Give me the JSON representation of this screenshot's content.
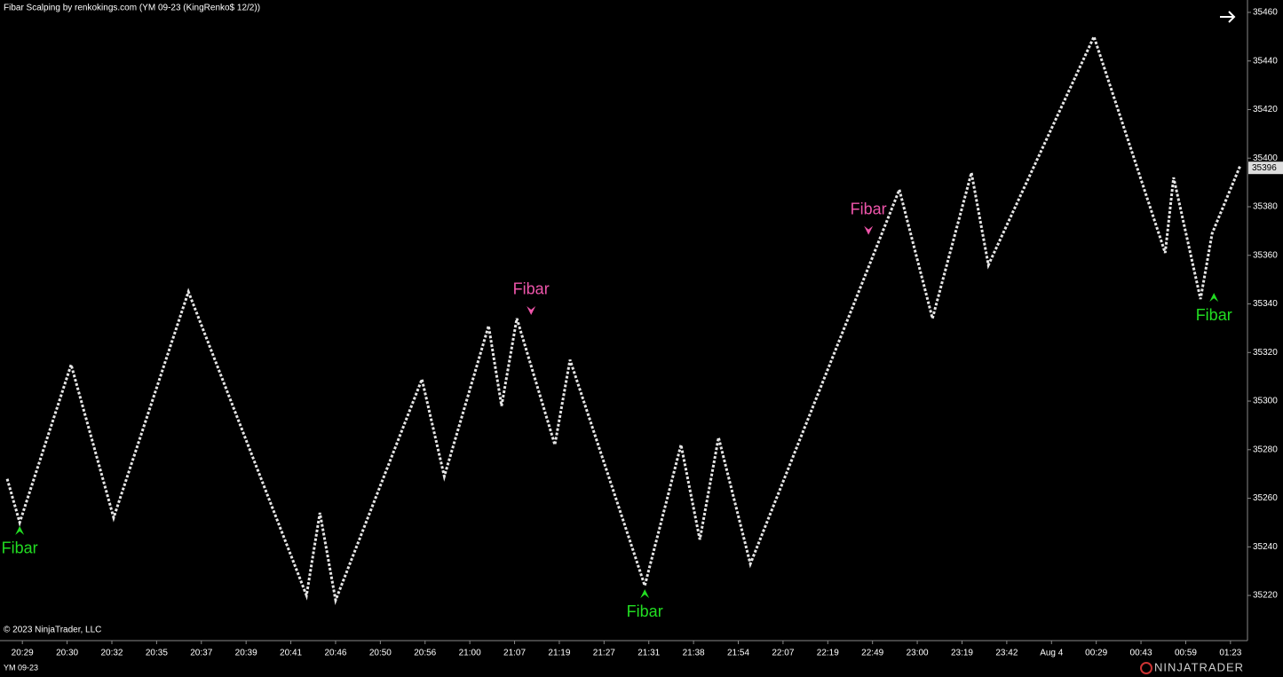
{
  "chart_data": {
    "type": "renko",
    "title": "Fibar Scalping by renkokings.com (YM 09-23 (KingRenko$ 12/2))",
    "copyright": "© 2023 NinjaTrader, LLC",
    "instrument": "YM 09-23",
    "brand": "NINJATRADER",
    "categories": [
      "20:29",
      "20:30",
      "20:32",
      "20:35",
      "20:37",
      "20:39",
      "20:41",
      "20:46",
      "20:50",
      "20:56",
      "21:00",
      "21:07",
      "21:19",
      "21:27",
      "21:31",
      "21:38",
      "21:54",
      "22:07",
      "22:19",
      "22:49",
      "23:00",
      "23:19",
      "23:42",
      "Aug 4",
      "00:29",
      "00:43",
      "00:59",
      "01:23"
    ],
    "x": [
      -0.34,
      -0.06,
      1.09,
      2.04,
      3.71,
      6.35,
      6.65,
      7.0,
      8.93,
      9.43,
      10.42,
      10.71,
      11.05,
      11.9,
      12.24,
      13.91,
      14.72,
      15.14,
      15.56,
      16.27,
      19.6,
      20.34,
      21.21,
      21.59,
      23.95,
      25.54,
      25.73,
      26.33,
      26.59,
      27.22
    ],
    "values": [
      35268,
      35250,
      35315,
      35252,
      35345,
      35220,
      35254,
      35218,
      35309,
      35269,
      35331,
      35298,
      35334,
      35282,
      35317,
      35224,
      35282,
      35243,
      35285,
      35233,
      35387,
      35334,
      35394,
      35356,
      35450,
      35361,
      35392,
      35342,
      35369,
      35397
    ],
    "last_price": 35396,
    "signals": [
      {
        "label": "Fibar",
        "x": -0.06,
        "value": 35250,
        "direction": "up"
      },
      {
        "label": "Fibar",
        "x": 11.37,
        "value": 35334,
        "direction": "down"
      },
      {
        "label": "Fibar",
        "x": 13.91,
        "value": 35224,
        "direction": "up"
      },
      {
        "label": "Fibar",
        "x": 18.91,
        "value": 35367,
        "direction": "down"
      },
      {
        "label": "Fibar",
        "x": 26.63,
        "value": 35346,
        "direction": "up"
      }
    ],
    "xlim": [
      -0.5,
      27.38
    ],
    "ylim": [
      35201.4,
      35465.1
    ],
    "yticks": [
      35220,
      35240,
      35260,
      35280,
      35300,
      35320,
      35340,
      35360,
      35380,
      35400,
      35420,
      35440,
      35460
    ],
    "colors": {
      "bricks": "#e6e6e6",
      "up_signal": "#22dd22",
      "down_signal": "#ee55aa"
    }
  }
}
